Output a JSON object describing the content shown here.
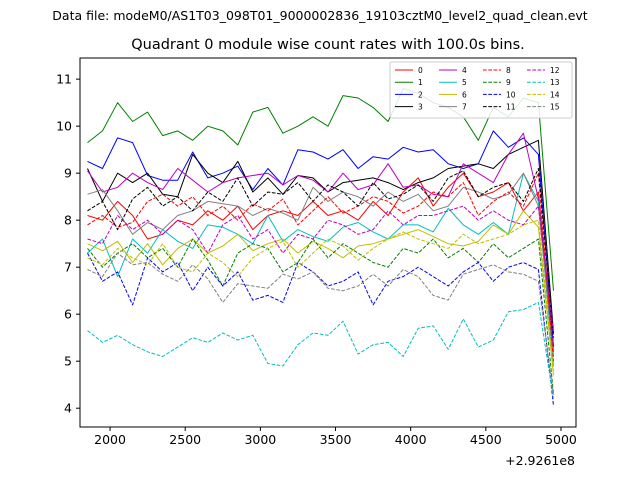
{
  "chart_data": {
    "type": "line",
    "suptitle": "Data file: modeM0/AS1T03_098T01_9000002836_19103cztM0_level2_quad_clean.evt",
    "title": "Quadrant 0 module wise count rates with 100.0s bins.",
    "xlabel": "",
    "ylabel": "",
    "x_offset_label": "+2.9261e8",
    "xlim": [
      1800,
      5100
    ],
    "ylim": [
      3.6,
      11.45
    ],
    "xticks": [
      2000,
      2500,
      3000,
      3500,
      4000,
      4500,
      5000
    ],
    "yticks": [
      4,
      5,
      6,
      7,
      8,
      9,
      10,
      11
    ],
    "x": [
      1850,
      1950,
      2050,
      2150,
      2250,
      2350,
      2450,
      2550,
      2650,
      2750,
      2850,
      2950,
      3050,
      3150,
      3250,
      3350,
      3450,
      3550,
      3650,
      3750,
      3850,
      3950,
      4050,
      4150,
      4250,
      4350,
      4450,
      4550,
      4650,
      4750,
      4850,
      4950
    ],
    "legend": {
      "location": "top-right",
      "ncol": 4,
      "entries": [
        "0",
        "1",
        "2",
        "3",
        "4",
        "5",
        "6",
        "7",
        "8",
        "9",
        "10",
        "11",
        "12",
        "13",
        "14",
        "15"
      ]
    },
    "series": [
      {
        "name": "0",
        "color": "#ff0000",
        "dash": "solid",
        "values": [
          8.1,
          8.0,
          8.4,
          8.1,
          7.6,
          7.7,
          8.0,
          7.9,
          8.2,
          8.0,
          8.3,
          7.8,
          8.1,
          8.2,
          8.1,
          8.4,
          8.1,
          8.2,
          8.0,
          8.4,
          8.1,
          8.6,
          8.9,
          8.3,
          8.7,
          9.0,
          8.5,
          8.6,
          8.8,
          8.2,
          8.6,
          5.3
        ]
      },
      {
        "name": "1",
        "color": "#008000",
        "dash": "solid",
        "values": [
          9.65,
          9.9,
          10.5,
          10.1,
          10.3,
          9.8,
          9.9,
          9.7,
          10.0,
          9.9,
          9.6,
          10.3,
          10.4,
          9.85,
          10.0,
          10.2,
          10.0,
          10.65,
          10.6,
          10.4,
          10.1,
          10.8,
          10.7,
          10.5,
          10.4,
          10.2,
          9.7,
          10.4,
          10.2,
          10.6,
          10.5,
          6.5
        ]
      },
      {
        "name": "2",
        "color": "#0000ff",
        "dash": "solid",
        "values": [
          9.25,
          9.1,
          9.75,
          9.65,
          8.95,
          8.85,
          8.85,
          9.45,
          8.9,
          9.0,
          9.15,
          8.65,
          9.1,
          8.75,
          9.5,
          9.45,
          9.3,
          9.5,
          9.1,
          9.35,
          9.3,
          9.55,
          9.45,
          9.5,
          9.2,
          9.1,
          9.2,
          9.9,
          9.55,
          9.75,
          9.4,
          5.3
        ]
      },
      {
        "name": "3",
        "color": "#000000",
        "dash": "solid",
        "values": [
          9.1,
          8.4,
          9.0,
          8.8,
          9.0,
          8.55,
          8.5,
          9.4,
          9.0,
          8.8,
          9.25,
          8.6,
          8.9,
          8.55,
          8.95,
          8.9,
          8.6,
          8.8,
          8.85,
          8.9,
          8.8,
          8.65,
          8.8,
          8.9,
          9.1,
          9.15,
          9.2,
          9.1,
          9.4,
          9.55,
          9.7,
          5.6
        ]
      },
      {
        "name": "4",
        "color": "#bf00bf",
        "dash": "solid",
        "values": [
          9.05,
          8.6,
          8.7,
          9.0,
          8.8,
          8.65,
          9.1,
          8.85,
          8.6,
          8.8,
          8.9,
          8.95,
          9.0,
          8.75,
          8.95,
          8.85,
          8.6,
          9.0,
          8.65,
          8.75,
          9.2,
          8.7,
          8.75,
          8.55,
          8.5,
          9.2,
          9.0,
          8.8,
          9.4,
          9.85,
          8.45,
          5.2
        ]
      },
      {
        "name": "5",
        "color": "#00bfbf",
        "dash": "solid",
        "values": [
          7.3,
          7.6,
          6.8,
          7.6,
          7.3,
          7.8,
          7.55,
          7.4,
          7.9,
          7.85,
          7.7,
          7.5,
          8.1,
          7.55,
          7.8,
          7.65,
          7.55,
          7.85,
          7.95,
          7.75,
          7.6,
          7.9,
          7.9,
          7.75,
          8.25,
          7.9,
          7.7,
          7.95,
          7.7,
          9.0,
          8.4,
          4.9
        ]
      },
      {
        "name": "6",
        "color": "#bfbf00",
        "dash": "solid",
        "values": [
          7.5,
          7.35,
          7.55,
          7.1,
          7.5,
          7.05,
          7.4,
          7.6,
          7.3,
          7.45,
          7.7,
          7.35,
          7.5,
          7.6,
          7.3,
          7.55,
          7.4,
          7.2,
          7.45,
          7.5,
          7.6,
          7.7,
          7.8,
          7.65,
          7.5,
          7.45,
          7.55,
          7.9,
          7.7,
          8.2,
          7.85,
          4.7
        ]
      },
      {
        "name": "7",
        "color": "#808080",
        "dash": "solid",
        "values": [
          8.55,
          8.65,
          8.2,
          7.7,
          7.95,
          7.8,
          8.1,
          8.2,
          8.4,
          8.35,
          8.3,
          8.1,
          8.25,
          8.15,
          8.0,
          8.7,
          8.4,
          8.6,
          8.5,
          8.3,
          8.6,
          8.4,
          8.55,
          8.2,
          8.3,
          8.7,
          8.6,
          8.45,
          8.55,
          9.0,
          8.3,
          5.1
        ]
      },
      {
        "name": "8",
        "color": "#ff0000",
        "dash": "dashed",
        "values": [
          7.9,
          8.1,
          7.85,
          7.95,
          8.4,
          8.55,
          8.3,
          8.5,
          8.1,
          8.3,
          8.0,
          8.35,
          8.2,
          8.45,
          7.9,
          8.2,
          8.5,
          8.15,
          8.3,
          8.5,
          8.4,
          8.15,
          8.3,
          8.6,
          8.5,
          8.8,
          8.1,
          8.4,
          8.6,
          8.3,
          9.0,
          5.0
        ]
      },
      {
        "name": "9",
        "color": "#008000",
        "dash": "dashed",
        "values": [
          7.4,
          7.0,
          7.3,
          7.5,
          7.2,
          7.4,
          7.0,
          7.6,
          7.15,
          6.6,
          7.3,
          7.5,
          7.4,
          6.9,
          7.1,
          7.6,
          7.2,
          7.5,
          7.3,
          7.1,
          7.0,
          7.4,
          7.3,
          7.6,
          7.2,
          7.4,
          7.1,
          7.5,
          7.2,
          7.4,
          7.6,
          4.3
        ]
      },
      {
        "name": "10",
        "color": "#0000ff",
        "dash": "dashed",
        "values": [
          7.3,
          6.7,
          6.9,
          6.2,
          7.2,
          6.9,
          7.1,
          6.5,
          7.0,
          6.6,
          6.9,
          6.3,
          6.4,
          6.25,
          7.1,
          6.9,
          6.6,
          6.7,
          6.9,
          6.2,
          6.7,
          6.8,
          7.0,
          6.8,
          6.6,
          6.9,
          7.1,
          6.7,
          7.0,
          7.1,
          6.95,
          4.05
        ]
      },
      {
        "name": "11",
        "color": "#000000",
        "dash": "dashed",
        "values": [
          8.2,
          8.4,
          7.8,
          8.45,
          8.7,
          8.3,
          8.5,
          8.2,
          8.6,
          8.4,
          8.9,
          8.3,
          8.6,
          8.55,
          8.8,
          8.4,
          8.75,
          8.6,
          8.3,
          8.8,
          8.45,
          8.55,
          8.75,
          8.4,
          8.9,
          9.05,
          8.5,
          8.7,
          8.8,
          8.4,
          9.1,
          5.5
        ]
      },
      {
        "name": "12",
        "color": "#bf00bf",
        "dash": "dashed",
        "values": [
          7.6,
          7.5,
          8.1,
          7.8,
          8.0,
          7.7,
          8.0,
          7.8,
          7.3,
          7.9,
          8.1,
          7.6,
          7.8,
          7.3,
          7.7,
          7.6,
          8.0,
          7.9,
          7.7,
          7.8,
          8.2,
          7.9,
          8.1,
          8.1,
          8.2,
          8.3,
          8.0,
          8.2,
          8.0,
          7.9,
          8.3,
          5.6
        ]
      },
      {
        "name": "13",
        "color": "#00bfbf",
        "dash": "dashed",
        "values": [
          5.65,
          5.4,
          5.55,
          5.35,
          5.2,
          5.1,
          5.3,
          5.5,
          5.4,
          5.6,
          5.45,
          5.55,
          4.95,
          4.9,
          5.35,
          5.6,
          5.55,
          5.85,
          5.15,
          5.35,
          5.4,
          5.1,
          5.7,
          5.75,
          5.25,
          5.9,
          5.3,
          5.45,
          6.05,
          6.1,
          6.25,
          4.2
        ]
      },
      {
        "name": "14",
        "color": "#bfbf00",
        "dash": "dashed",
        "values": [
          7.2,
          7.05,
          7.4,
          7.2,
          7.05,
          7.5,
          7.0,
          6.9,
          7.3,
          7.1,
          6.8,
          7.2,
          7.4,
          7.55,
          7.0,
          7.3,
          7.6,
          7.45,
          7.15,
          7.4,
          7.6,
          7.75,
          7.6,
          7.5,
          7.4,
          7.7,
          7.5,
          7.6,
          7.7,
          7.9,
          8.0,
          4.8
        ]
      },
      {
        "name": "15",
        "color": "#808080",
        "dash": "dashed",
        "values": [
          6.95,
          6.8,
          7.3,
          7.05,
          7.1,
          6.85,
          6.7,
          7.05,
          6.75,
          6.25,
          6.65,
          6.6,
          6.55,
          6.85,
          6.75,
          6.9,
          6.55,
          6.5,
          6.6,
          6.85,
          6.6,
          6.95,
          6.8,
          6.4,
          6.3,
          6.85,
          6.95,
          7.05,
          6.9,
          6.85,
          6.7,
          4.25
        ]
      }
    ]
  }
}
